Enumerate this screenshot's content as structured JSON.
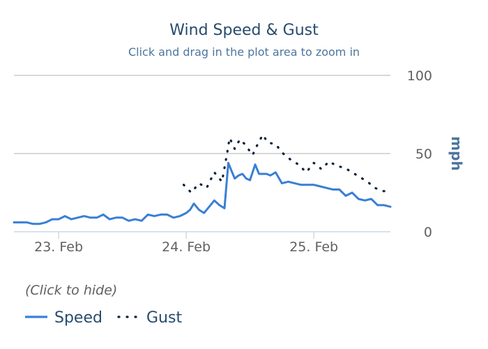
{
  "chart_data": {
    "type": "line",
    "title": "Wind Speed & Gust",
    "subtitle": "Click and drag in the plot area to zoom in",
    "ylabel": "mph",
    "ylim": [
      0,
      100
    ],
    "yticks": [
      0,
      50,
      100
    ],
    "x_unit": "days since 23 Feb 00:00",
    "xlim": [
      -0.35,
      2.6
    ],
    "xticks": [
      {
        "value": 0,
        "label": "23. Feb"
      },
      {
        "value": 1,
        "label": "24. Feb"
      },
      {
        "value": 2,
        "label": "25. Feb"
      }
    ],
    "legend_hint": "(Click to hide)",
    "legend_position": "bottom-left",
    "grid": true,
    "series": [
      {
        "name": "Speed",
        "color": "#3a7fd5",
        "style": "solid",
        "x": [
          -0.35,
          -0.3,
          -0.25,
          -0.2,
          -0.15,
          -0.1,
          -0.05,
          0,
          0.05,
          0.1,
          0.15,
          0.2,
          0.25,
          0.3,
          0.35,
          0.4,
          0.45,
          0.5,
          0.55,
          0.6,
          0.65,
          0.7,
          0.75,
          0.8,
          0.85,
          0.9,
          0.95,
          1.0,
          1.03,
          1.06,
          1.1,
          1.14,
          1.18,
          1.22,
          1.26,
          1.3,
          1.33,
          1.36,
          1.38,
          1.41,
          1.44,
          1.47,
          1.5,
          1.54,
          1.57,
          1.6,
          1.63,
          1.66,
          1.7,
          1.75,
          1.8,
          1.85,
          1.9,
          1.95,
          2.0,
          2.05,
          2.1,
          2.15,
          2.2,
          2.25,
          2.3,
          2.35,
          2.4,
          2.45,
          2.5,
          2.55,
          2.6
        ],
        "values": [
          6,
          6,
          6,
          5,
          5,
          6,
          8,
          8,
          10,
          8,
          9,
          10,
          9,
          9,
          11,
          8,
          9,
          9,
          7,
          8,
          7,
          11,
          10,
          11,
          11,
          9,
          10,
          12,
          14,
          18,
          14,
          12,
          16,
          20,
          17,
          15,
          44,
          38,
          34,
          36,
          37,
          34,
          33,
          43,
          37,
          37,
          37,
          36,
          38,
          31,
          32,
          31,
          30,
          30,
          30,
          29,
          28,
          27,
          27,
          23,
          25,
          21,
          20,
          21,
          17,
          17,
          16
        ],
        "note": ""
      },
      {
        "name": "Gust",
        "color": "#0d233a",
        "style": "dotted",
        "x": [
          0.98,
          1.04,
          1.1,
          1.16,
          1.22,
          1.28,
          1.32,
          1.34,
          1.38,
          1.42,
          1.46,
          1.52,
          1.56,
          1.6,
          1.64,
          1.7,
          1.76,
          1.82,
          1.88,
          1.94,
          2.0,
          2.06,
          2.12,
          2.18,
          2.24,
          2.3,
          2.36,
          2.42,
          2.48,
          2.54,
          2.6
        ],
        "values": [
          30,
          25,
          31,
          28,
          38,
          32,
          50,
          60,
          53,
          59,
          56,
          49,
          56,
          62,
          57,
          56,
          50,
          46,
          43,
          38,
          44,
          40,
          45,
          42,
          41,
          38,
          35,
          32,
          28,
          26,
          26
        ]
      }
    ]
  }
}
